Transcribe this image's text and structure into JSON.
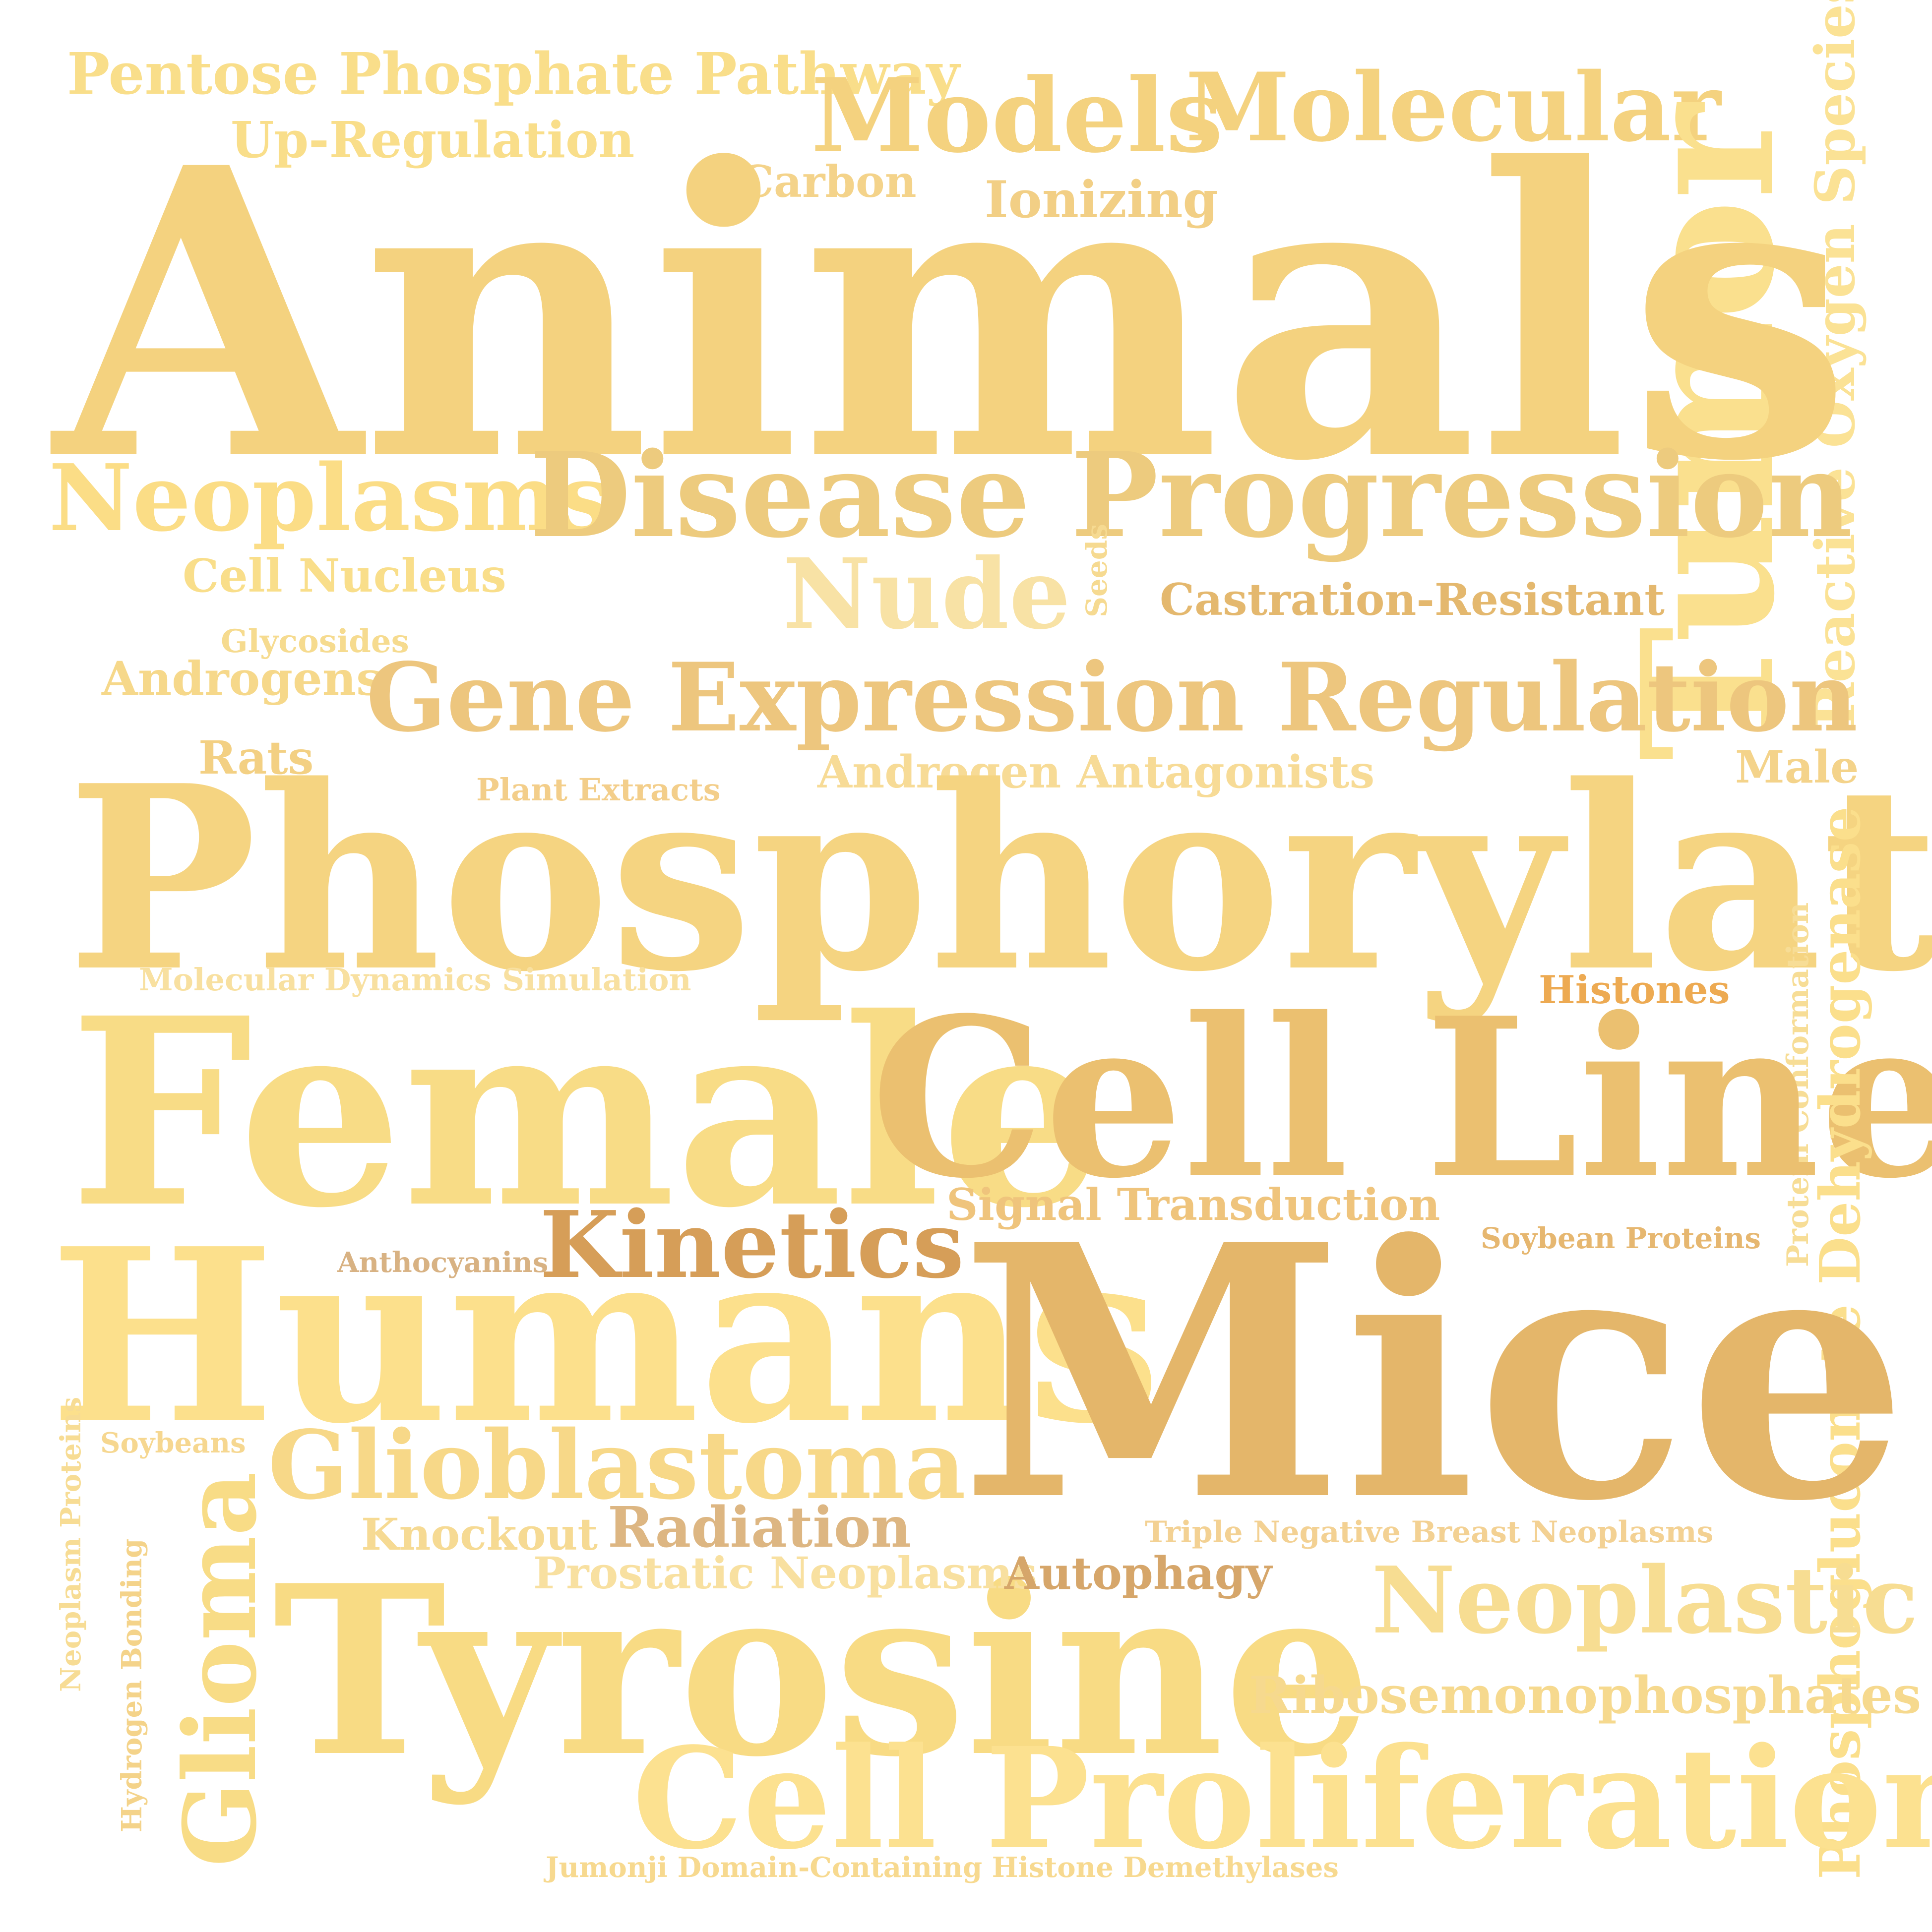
{
  "words": [
    {
      "text": "Pentose Phosphate Pathway",
      "color": "#F9DE8A"
    },
    {
      "text": "Up-Regulation",
      "color": "#F9DE8A"
    },
    {
      "text": "Models",
      "color": "#F4D27F"
    },
    {
      "text": "Molecular",
      "color": "#F4D27F"
    },
    {
      "text": "Tumor",
      "color": "#FAE08E"
    },
    {
      "text": "Carbon",
      "color": "#F4D38A"
    },
    {
      "text": "Ionizing",
      "color": "#F2CF85"
    },
    {
      "text": "Reactive Oxygen Species",
      "color": "#FBE295"
    },
    {
      "text": "Animals",
      "color": "#F4D27F"
    },
    {
      "text": "Neoplasms",
      "color": "#FBDD86"
    },
    {
      "text": "Disease Progression",
      "color": "#EDCB7E"
    },
    {
      "text": "Nude",
      "color": "#F8E2A5"
    },
    {
      "text": "Cell Nucleus",
      "color": "#F9DE8A"
    },
    {
      "text": "Seeds",
      "color": "#F6DA91"
    },
    {
      "text": "Castration-Resistant",
      "color": "#E4B86E"
    },
    {
      "text": "Glycosides",
      "color": "#F6DB8F"
    },
    {
      "text": "Androgens",
      "color": "#F6D88A"
    },
    {
      "text": "Gene Expression Regulation",
      "color": "#EDC67E"
    },
    {
      "text": "Rats",
      "color": "#F3D083"
    },
    {
      "text": "Plant Extracts",
      "color": "#F3CE8A"
    },
    {
      "text": "Androgen Antagonists",
      "color": "#F7DB96"
    },
    {
      "text": "Male",
      "color": "#F4D38A"
    },
    {
      "text": "Phosphorylation",
      "color": "#F5D481"
    },
    {
      "text": "Molecular Dynamics Simulation",
      "color": "#F8E0A0"
    },
    {
      "text": "Histones",
      "color": "#EDAA52"
    },
    {
      "text": "Protein Conformation",
      "color": "#F7DD96"
    },
    {
      "text": "Female",
      "color": "#F8DC86"
    },
    {
      "text": "Cell Line",
      "color": "#EBC070"
    },
    {
      "text": "Phosphogluconate Dehydrogenase",
      "color": "#FBDF8C"
    },
    {
      "text": "Signal Transduction",
      "color": "#EFC47C"
    },
    {
      "text": "Kinetics",
      "color": "#D69E58"
    },
    {
      "text": "Anthocyanins",
      "color": "#D8B283"
    },
    {
      "text": "Soybean Proteins",
      "color": "#E6B770"
    },
    {
      "text": "Humans",
      "color": "#FCE08C"
    },
    {
      "text": "Mice",
      "color": "#E4B66A"
    },
    {
      "text": "Neoplasm Proteins",
      "color": "#F7DC94"
    },
    {
      "text": "Soybeans",
      "color": "#F6D790"
    },
    {
      "text": "Glioblastoma",
      "color": "#F7D888"
    },
    {
      "text": "Knockout",
      "color": "#F6DA93"
    },
    {
      "text": "Radiation",
      "color": "#DDB682"
    },
    {
      "text": "Triple Negative Breast Neoplasms",
      "color": "#F3D193"
    },
    {
      "text": "Hydrogen Bonding",
      "color": "#F4D38A"
    },
    {
      "text": "Glioma",
      "color": "#F8DC86"
    },
    {
      "text": "Tyrosine",
      "color": "#F8DB84"
    },
    {
      "text": "Prostatic Neoplasms",
      "color": "#F8E0A0"
    },
    {
      "text": "Autophagy",
      "color": "#D6A66A"
    },
    {
      "text": "Neoplastic",
      "color": "#F7DD92"
    },
    {
      "text": "Ribosemonophosphates",
      "color": "#F6D98E"
    },
    {
      "text": "Cell Proliferation",
      "color": "#FCE190"
    },
    {
      "text": "Jumonji Domain-Containing Histone Demethylases",
      "color": "#F7D98F"
    }
  ]
}
